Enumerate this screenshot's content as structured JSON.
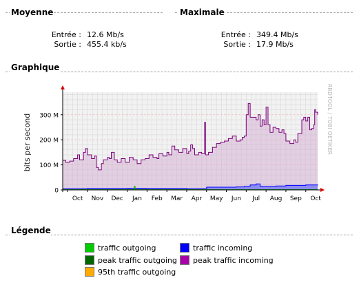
{
  "summary": {
    "average": {
      "heading": "Moyenne",
      "in_label": "Entrée :",
      "in_value": "12.6 Mb/s",
      "out_label": "Sortie :",
      "out_value": "455.4 kb/s"
    },
    "maximum": {
      "heading": "Maximale",
      "in_label": "Entrée :",
      "in_value": "349.4 Mb/s",
      "out_label": "Sortie :",
      "out_value": "17.9 Mb/s"
    }
  },
  "graph": {
    "heading": "Graphique",
    "watermark": "RRDTOOL / TOBI OETIKER"
  },
  "legend": {
    "heading": "Légende",
    "items": [
      {
        "label": "traffic outgoing",
        "color": "#00cc00"
      },
      {
        "label": "traffic incoming",
        "color": "#0000ff"
      },
      {
        "label": "peak traffic outgoing",
        "color": "#006600"
      },
      {
        "label": "peak traffic incoming",
        "color": "#ff00ff"
      },
      {
        "label": "95th traffic outgoing",
        "color": "#ffaa00"
      }
    ]
  },
  "chart_data": {
    "type": "line",
    "title": "",
    "xlabel": "",
    "ylabel": "bits per second",
    "ylim": [
      0,
      390
    ],
    "y_ticks": [
      0,
      100,
      200,
      300
    ],
    "y_tick_labels": [
      "0",
      "100 M",
      "200 M",
      "300 M"
    ],
    "x_ticks": [
      "Oct",
      "Nov",
      "Dec",
      "Jan",
      "Feb",
      "Mar",
      "Apr",
      "May",
      "Jun",
      "Jul",
      "Aug",
      "Sep",
      "Oct"
    ],
    "x_range_months": [
      -0.25,
      12.6
    ],
    "grid": true,
    "colors": {
      "peak_incoming_line": "#7a007a",
      "peak_incoming_fill": "#cfa6cf",
      "incoming_line": "#0000ff",
      "incoming_fill": "#8d8def",
      "outgoing_line": "#00aa00",
      "axis_arrow": "#dd0000",
      "grid": "#d8d8d8",
      "plot_bg": "#f2f2f2"
    },
    "series": [
      {
        "name": "peak traffic incoming",
        "points": [
          [
            -0.25,
            118
          ],
          [
            -0.1,
            110
          ],
          [
            0.1,
            115
          ],
          [
            0.3,
            125
          ],
          [
            0.5,
            140
          ],
          [
            0.6,
            120
          ],
          [
            0.8,
            150
          ],
          [
            0.9,
            165
          ],
          [
            1.0,
            140
          ],
          [
            1.2,
            125
          ],
          [
            1.35,
            135
          ],
          [
            1.45,
            90
          ],
          [
            1.55,
            80
          ],
          [
            1.7,
            105
          ],
          [
            1.8,
            120
          ],
          [
            2.0,
            130
          ],
          [
            2.1,
            125
          ],
          [
            2.2,
            150
          ],
          [
            2.35,
            120
          ],
          [
            2.5,
            110
          ],
          [
            2.7,
            125
          ],
          [
            2.9,
            110
          ],
          [
            3.1,
            130
          ],
          [
            3.3,
            120
          ],
          [
            3.5,
            105
          ],
          [
            3.7,
            120
          ],
          [
            3.9,
            125
          ],
          [
            4.1,
            140
          ],
          [
            4.3,
            130
          ],
          [
            4.5,
            125
          ],
          [
            4.6,
            145
          ],
          [
            4.8,
            135
          ],
          [
            5.0,
            150
          ],
          [
            5.1,
            140
          ],
          [
            5.25,
            175
          ],
          [
            5.4,
            160
          ],
          [
            5.6,
            150
          ],
          [
            5.8,
            165
          ],
          [
            6.0,
            145
          ],
          [
            6.1,
            155
          ],
          [
            6.2,
            180
          ],
          [
            6.3,
            165
          ],
          [
            6.4,
            140
          ],
          [
            6.6,
            150
          ],
          [
            6.75,
            145
          ],
          [
            6.9,
            270
          ],
          [
            6.95,
            140
          ],
          [
            7.1,
            150
          ],
          [
            7.3,
            170
          ],
          [
            7.5,
            185
          ],
          [
            7.7,
            190
          ],
          [
            7.9,
            195
          ],
          [
            8.1,
            205
          ],
          [
            8.3,
            215
          ],
          [
            8.5,
            195
          ],
          [
            8.7,
            200
          ],
          [
            8.8,
            210
          ],
          [
            8.9,
            215
          ],
          [
            9.0,
            300
          ],
          [
            9.1,
            345
          ],
          [
            9.2,
            290
          ],
          [
            9.35,
            290
          ],
          [
            9.5,
            280
          ],
          [
            9.6,
            300
          ],
          [
            9.7,
            255
          ],
          [
            9.8,
            280
          ],
          [
            9.9,
            260
          ],
          [
            10.0,
            330
          ],
          [
            10.1,
            260
          ],
          [
            10.2,
            230
          ],
          [
            10.35,
            250
          ],
          [
            10.5,
            245
          ],
          [
            10.65,
            230
          ],
          [
            10.8,
            240
          ],
          [
            10.9,
            225
          ],
          [
            11.0,
            195
          ],
          [
            11.2,
            185
          ],
          [
            11.4,
            200
          ],
          [
            11.5,
            190
          ],
          [
            11.6,
            225
          ],
          [
            11.8,
            280
          ],
          [
            11.9,
            290
          ],
          [
            12.0,
            275
          ],
          [
            12.1,
            290
          ],
          [
            12.2,
            240
          ],
          [
            12.3,
            245
          ],
          [
            12.4,
            260
          ],
          [
            12.45,
            320
          ],
          [
            12.5,
            310
          ],
          [
            12.6,
            300
          ]
        ]
      },
      {
        "name": "traffic incoming",
        "points": [
          [
            -0.25,
            5
          ],
          [
            1.0,
            6
          ],
          [
            2.0,
            6
          ],
          [
            3.0,
            7
          ],
          [
            4.0,
            6
          ],
          [
            5.0,
            6
          ],
          [
            6.0,
            5
          ],
          [
            6.8,
            5
          ],
          [
            7.0,
            11
          ],
          [
            8.0,
            11
          ],
          [
            8.5,
            12
          ],
          [
            8.9,
            14
          ],
          [
            9.2,
            20
          ],
          [
            9.5,
            24
          ],
          [
            9.7,
            14
          ],
          [
            10.5,
            16
          ],
          [
            11.0,
            18
          ],
          [
            12.0,
            20
          ],
          [
            12.6,
            18
          ]
        ]
      },
      {
        "name": "traffic outgoing",
        "points": [
          [
            -0.25,
            1
          ],
          [
            3.3,
            1
          ],
          [
            3.35,
            14
          ],
          [
            3.4,
            1
          ],
          [
            12.6,
            1
          ]
        ]
      }
    ]
  }
}
